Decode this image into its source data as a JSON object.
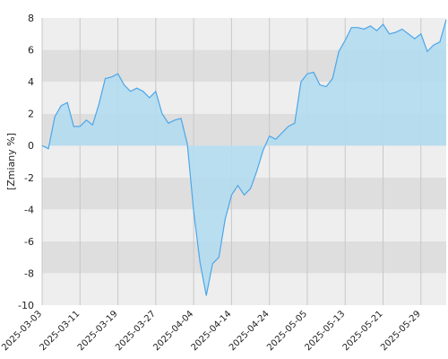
{
  "chart_data": {
    "type": "area",
    "ylabel": "[Zmiany %]",
    "xlabel": "",
    "title": "",
    "ylim": [
      -10,
      8
    ],
    "yticks": [
      -10,
      -8,
      -6,
      -4,
      -2,
      0,
      2,
      4,
      6,
      8
    ],
    "ytick_labels": [
      "-10",
      "-8",
      "-6",
      "-4",
      "-2",
      "0",
      "2",
      "4",
      "6",
      "8"
    ],
    "xtick_labels": [
      "2025-03-03",
      "2025-03-11",
      "2025-03-19",
      "2025-03-27",
      "2025-04-04",
      "2025-04-14",
      "2025-04-24",
      "2025-05-05",
      "2025-05-13",
      "2025-05-21",
      "2025-05-29"
    ],
    "xtick_indices": [
      0,
      6,
      12,
      18,
      24,
      30,
      36,
      42,
      48,
      54,
      60
    ],
    "grid": true,
    "series": [
      {
        "color": "#4da6e8",
        "fill": "#b3dcef",
        "values": [
          0.0,
          -0.2,
          1.8,
          2.5,
          2.7,
          1.2,
          1.2,
          1.6,
          1.3,
          2.6,
          4.2,
          4.3,
          4.5,
          3.8,
          3.4,
          3.6,
          3.4,
          3.0,
          3.4,
          2.0,
          1.4,
          1.6,
          1.7,
          0.1,
          -4.1,
          -7.3,
          -9.4,
          -7.4,
          -7.0,
          -4.6,
          -3.1,
          -2.5,
          -3.1,
          -2.7,
          -1.6,
          -0.3,
          0.6,
          0.4,
          0.8,
          1.2,
          1.4,
          4.0,
          4.5,
          4.6,
          3.8,
          3.7,
          4.2,
          5.9,
          6.6,
          7.4,
          7.4,
          7.3,
          7.5,
          7.2,
          7.6,
          7.0,
          7.1,
          7.3,
          7.0,
          6.7,
          7.0,
          5.9,
          6.3,
          6.5,
          7.9
        ]
      }
    ]
  }
}
